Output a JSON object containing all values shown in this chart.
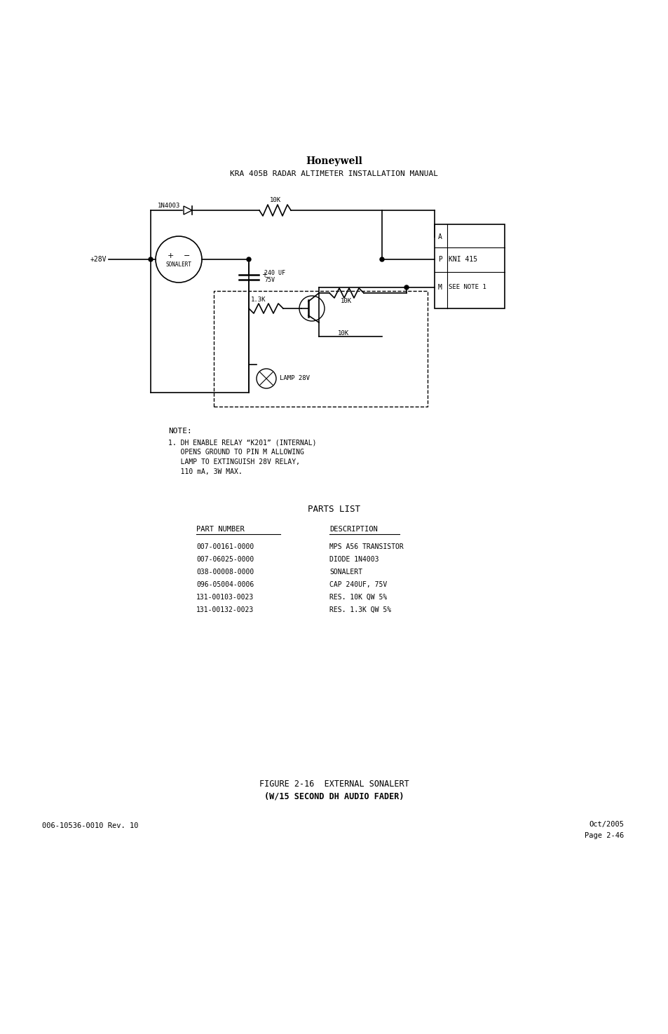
{
  "bg_color": "#ffffff",
  "header_honeywell": "Honeywell",
  "header_subtitle": "KRA 405B RADAR ALTIMETER INSTALLATION MANUAL",
  "figure_caption_line1": "FIGURE 2-16  EXTERNAL SONALERT",
  "figure_caption_line2": "(W/15 SECOND DH AUDIO FADER)",
  "footer_left": "006-10536-0010 Rev. 10",
  "footer_right_top": "Page 2-46",
  "footer_right_bot": "Oct/2005",
  "note_header": "NOTE:",
  "note_line1": "1. DH ENABLE RELAY “K201” (INTERNAL)",
  "note_line2": "   OPENS GROUND TO PIN M ALLOWING",
  "note_line3": "   LAMP TO EXTINGUISH 28V RELAY,",
  "note_line4": "   110 mA, 3W MAX.",
  "parts_list_title": "PARTS LIST",
  "parts_col1_header": "PART NUMBER",
  "parts_col2_header": "DESCRIPTION",
  "parts": [
    [
      "007-00161-0000",
      "MPS A56 TRANSISTOR"
    ],
    [
      "007-06025-0000",
      "DIODE 1N4003"
    ],
    [
      "038-00008-0000",
      "SONALERT"
    ],
    [
      "096-05004-0006",
      "CAP 240UF, 75V"
    ],
    [
      "131-00103-0023",
      "RES. 10K QW 5%"
    ],
    [
      "131-00132-0023",
      "RES. 1.3K QW 5%"
    ]
  ]
}
